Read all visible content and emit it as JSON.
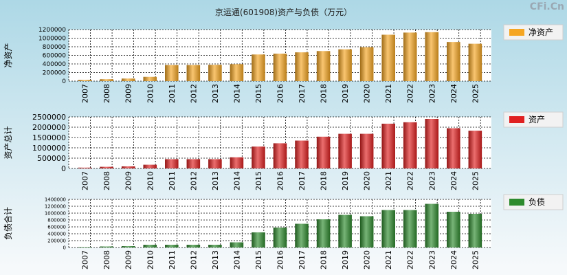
{
  "title": "京运通(601908)资产与负债（万元）",
  "watermark": "CFi.Cn",
  "chart_data": [
    {
      "type": "bar",
      "ylabel": "净资产",
      "legend": "净资产",
      "legend_placement": "right",
      "color": "#f5a623",
      "categories": [
        "2007",
        "2008",
        "2009",
        "2010",
        "2011",
        "2012",
        "2013",
        "2014",
        "2015",
        "2016",
        "2017",
        "2018",
        "2019",
        "2020",
        "2021",
        "2022",
        "2023",
        "2024",
        "2025"
      ],
      "values": [
        30000,
        45000,
        60000,
        100000,
        375000,
        375000,
        380000,
        395000,
        620000,
        640000,
        670000,
        700000,
        740000,
        790000,
        1080000,
        1130000,
        1140000,
        910000,
        870000
      ],
      "ylim": [
        0,
        1200000
      ],
      "yticks": [
        "0",
        "200000",
        "400000",
        "600000",
        "800000",
        "1000000",
        "1200000"
      ],
      "grid": true
    },
    {
      "type": "bar",
      "ylabel": "资产总计",
      "legend": "资产",
      "legend_placement": "right",
      "color": "#e02020",
      "categories": [
        "2007",
        "2008",
        "2009",
        "2010",
        "2011",
        "2012",
        "2013",
        "2014",
        "2015",
        "2016",
        "2017",
        "2018",
        "2019",
        "2020",
        "2021",
        "2022",
        "2023",
        "2024",
        "2025"
      ],
      "values": [
        40000,
        80000,
        100000,
        180000,
        450000,
        450000,
        450000,
        540000,
        1060000,
        1220000,
        1350000,
        1540000,
        1680000,
        1680000,
        2170000,
        2240000,
        2400000,
        1950000,
        1830000
      ],
      "ylim": [
        0,
        2500000
      ],
      "yticks": [
        "0",
        "500000",
        "1000000",
        "1500000",
        "2000000",
        "2500000"
      ],
      "grid": true
    },
    {
      "type": "bar",
      "ylabel": "负债合计",
      "legend": "负债",
      "legend_placement": "right",
      "color": "#2e8b2e",
      "categories": [
        "2007",
        "2008",
        "2009",
        "2010",
        "2011",
        "2012",
        "2013",
        "2014",
        "2015",
        "2016",
        "2017",
        "2018",
        "2019",
        "2020",
        "2021",
        "2022",
        "2023",
        "2024",
        "2025"
      ],
      "values": [
        15000,
        30000,
        40000,
        80000,
        80000,
        80000,
        80000,
        150000,
        440000,
        580000,
        690000,
        820000,
        950000,
        910000,
        1090000,
        1090000,
        1270000,
        1040000,
        980000
      ],
      "ylim": [
        0,
        1400000
      ],
      "yticks": [
        "0",
        "200000",
        "400000",
        "600000",
        "800000",
        "1000000",
        "1200000",
        "1400000"
      ],
      "grid": true
    }
  ]
}
